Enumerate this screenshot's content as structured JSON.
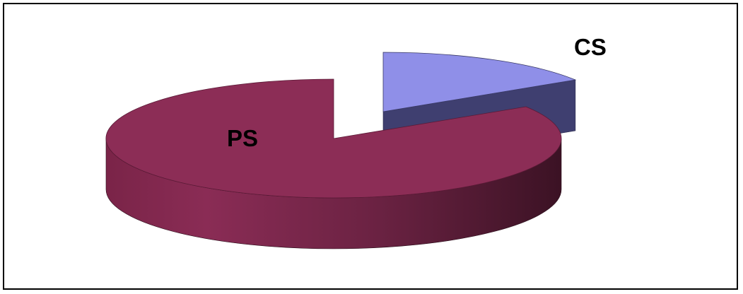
{
  "chart_data": {
    "type": "pie",
    "style": "3d-exploded",
    "title": "",
    "legend": "none",
    "slices": [
      {
        "label": "CS",
        "value": 16,
        "color": "#8f8fe8",
        "side_color": "#3f3f70"
      },
      {
        "label": "PS",
        "value": 84,
        "color": "#8c2d56",
        "side_color": "#5e1d3a"
      }
    ]
  }
}
